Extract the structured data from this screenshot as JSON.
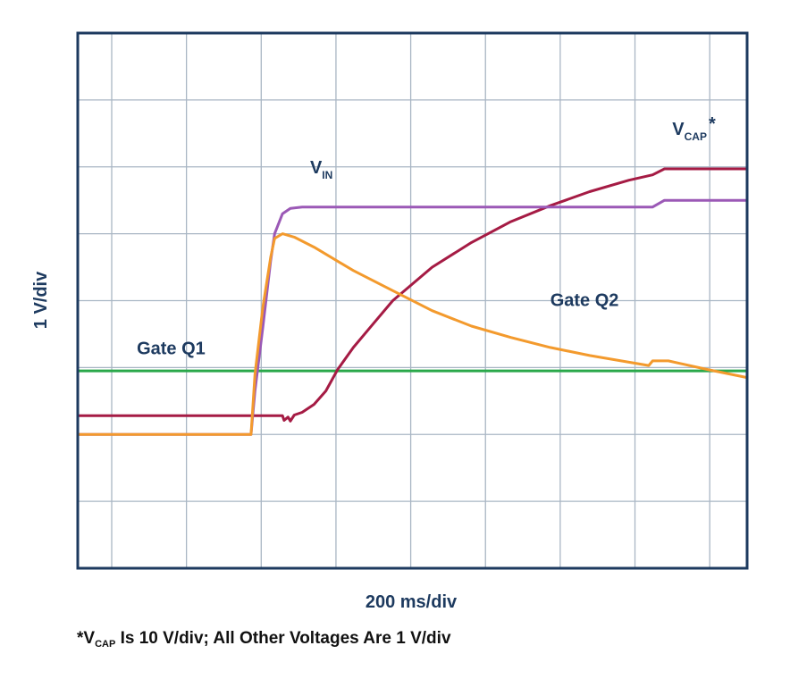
{
  "chart_data": {
    "type": "line",
    "xlabel": "200 ms/div",
    "ylabel": "1 V/div",
    "grid": true,
    "divisions": {
      "x": 8.5,
      "y": 8
    },
    "series": [
      {
        "name": "Gate Q1",
        "color": "#2aa84a",
        "points": [
          [
            0,
            2.95
          ],
          [
            8.5,
            2.95
          ]
        ]
      },
      {
        "name": "VCAP*",
        "color": "#a51b44",
        "points": [
          [
            0,
            2.28
          ],
          [
            2.6,
            2.28
          ],
          [
            2.62,
            2.21
          ],
          [
            2.67,
            2.26
          ],
          [
            2.7,
            2.2
          ],
          [
            2.75,
            2.29
          ],
          [
            2.85,
            2.33
          ],
          [
            3.0,
            2.45
          ],
          [
            3.15,
            2.65
          ],
          [
            3.3,
            2.97
          ],
          [
            3.5,
            3.3
          ],
          [
            3.75,
            3.65
          ],
          [
            4.0,
            4.0
          ],
          [
            4.5,
            4.5
          ],
          [
            5.0,
            4.87
          ],
          [
            5.5,
            5.18
          ],
          [
            6.0,
            5.42
          ],
          [
            6.5,
            5.63
          ],
          [
            7.0,
            5.8
          ],
          [
            7.3,
            5.88
          ],
          [
            7.45,
            5.97
          ],
          [
            8.5,
            5.97
          ]
        ]
      },
      {
        "name": "VIN",
        "color": "#9b59b6",
        "points": [
          [
            0,
            2.0
          ],
          [
            2.2,
            2.0
          ],
          [
            2.25,
            2.65
          ],
          [
            2.35,
            3.6
          ],
          [
            2.45,
            4.6
          ],
          [
            2.5,
            5.0
          ],
          [
            2.6,
            5.3
          ],
          [
            2.7,
            5.38
          ],
          [
            2.85,
            5.4
          ],
          [
            7.3,
            5.4
          ],
          [
            7.45,
            5.5
          ],
          [
            8.5,
            5.5
          ]
        ]
      },
      {
        "name": "Gate Q2",
        "color": "#f39a2d",
        "points": [
          [
            0,
            2.0
          ],
          [
            2.2,
            2.0
          ],
          [
            2.25,
            2.9
          ],
          [
            2.35,
            3.9
          ],
          [
            2.45,
            4.65
          ],
          [
            2.5,
            4.93
          ],
          [
            2.6,
            5.0
          ],
          [
            2.75,
            4.95
          ],
          [
            3.0,
            4.8
          ],
          [
            3.5,
            4.45
          ],
          [
            4.0,
            4.15
          ],
          [
            4.5,
            3.85
          ],
          [
            5.0,
            3.62
          ],
          [
            5.5,
            3.45
          ],
          [
            6.0,
            3.3
          ],
          [
            6.5,
            3.18
          ],
          [
            7.0,
            3.08
          ],
          [
            7.25,
            3.03
          ],
          [
            7.3,
            3.1
          ],
          [
            7.5,
            3.1
          ],
          [
            8.0,
            2.97
          ],
          [
            8.5,
            2.85
          ]
        ]
      }
    ],
    "annotations": [
      {
        "text": "V",
        "sub": "IN",
        "x": 2.95,
        "y": 5.9,
        "name": "vin-label"
      },
      {
        "text": "V",
        "sub": "CAP",
        "sup": "*",
        "x": 7.55,
        "y": 6.48,
        "name": "vcap-label"
      },
      {
        "text": "Gate Q1",
        "x": 0.75,
        "y": 3.2,
        "name": "gate-q1-label"
      },
      {
        "text": "Gate Q2",
        "x": 6.0,
        "y": 3.92,
        "name": "gate-q2-label"
      }
    ],
    "footnote": {
      "prefix": "*V",
      "sub": "CAP",
      "rest": " Is 10 V/div; All Other Voltages Are 1 V/div"
    }
  }
}
